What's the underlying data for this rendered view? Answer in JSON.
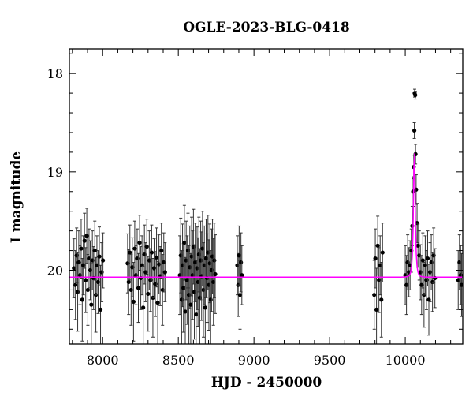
{
  "chart_data": {
    "type": "scatter",
    "title": "OGLE-2023-BLG-0418",
    "xlabel": "HJD - 2450000",
    "ylabel": "I magnitude",
    "xlim": [
      7780,
      10380
    ],
    "ylim": [
      20.75,
      17.75
    ],
    "y_inverted": true,
    "xticks": [
      8000,
      8500,
      9000,
      9500,
      10000
    ],
    "yticks": [
      18,
      19,
      20
    ],
    "grid": false,
    "colors": {
      "data": "#000000",
      "errorbar": "#333333",
      "model": "#ff00ff"
    },
    "model": {
      "name": "",
      "baseline_mag": 20.07,
      "peak_time": 10060,
      "peak_mag": 18.6,
      "tE": 11,
      "u0": 0.28
    },
    "series": [
      {
        "name": "",
        "points": [
          {
            "x": 7810,
            "y": 19.98
          },
          {
            "x": 7820,
            "y": 20.15
          },
          {
            "x": 7828,
            "y": 19.85
          },
          {
            "x": 7835,
            "y": 20.22
          },
          {
            "x": 7842,
            "y": 19.92
          },
          {
            "x": 7850,
            "y": 20.05
          },
          {
            "x": 7858,
            "y": 19.78
          },
          {
            "x": 7865,
            "y": 20.3
          },
          {
            "x": 7872,
            "y": 19.95
          },
          {
            "x": 7880,
            "y": 19.7
          },
          {
            "x": 7888,
            "y": 20.1
          },
          {
            "x": 7895,
            "y": 19.65
          },
          {
            "x": 7902,
            "y": 20.2
          },
          {
            "x": 7910,
            "y": 19.88
          },
          {
            "x": 7918,
            "y": 20.0
          },
          {
            "x": 7925,
            "y": 20.35
          },
          {
            "x": 7932,
            "y": 19.9
          },
          {
            "x": 7940,
            "y": 20.08
          },
          {
            "x": 7948,
            "y": 19.8
          },
          {
            "x": 7955,
            "y": 20.25
          },
          {
            "x": 7962,
            "y": 19.95
          },
          {
            "x": 7970,
            "y": 20.12
          },
          {
            "x": 7978,
            "y": 19.86
          },
          {
            "x": 7986,
            "y": 20.4
          },
          {
            "x": 7994,
            "y": 20.02
          },
          {
            "x": 8002,
            "y": 19.9
          },
          {
            "x": 8165,
            "y": 19.93
          },
          {
            "x": 8172,
            "y": 20.12
          },
          {
            "x": 8180,
            "y": 19.82
          },
          {
            "x": 8188,
            "y": 20.2
          },
          {
            "x": 8196,
            "y": 19.97
          },
          {
            "x": 8204,
            "y": 20.32
          },
          {
            "x": 8212,
            "y": 19.78
          },
          {
            "x": 8220,
            "y": 20.05
          },
          {
            "x": 8228,
            "y": 19.88
          },
          {
            "x": 8236,
            "y": 20.18
          },
          {
            "x": 8244,
            "y": 19.72
          },
          {
            "x": 8252,
            "y": 20.08
          },
          {
            "x": 8260,
            "y": 19.95
          },
          {
            "x": 8268,
            "y": 20.38
          },
          {
            "x": 8276,
            "y": 19.84
          },
          {
            "x": 8284,
            "y": 20.02
          },
          {
            "x": 8292,
            "y": 19.76
          },
          {
            "x": 8300,
            "y": 20.24
          },
          {
            "x": 8308,
            "y": 19.9
          },
          {
            "x": 8316,
            "y": 20.1
          },
          {
            "x": 8324,
            "y": 19.82
          },
          {
            "x": 8332,
            "y": 20.28
          },
          {
            "x": 8340,
            "y": 19.98
          },
          {
            "x": 8348,
            "y": 20.14
          },
          {
            "x": 8356,
            "y": 19.87
          },
          {
            "x": 8364,
            "y": 20.33
          },
          {
            "x": 8372,
            "y": 19.94
          },
          {
            "x": 8380,
            "y": 20.06
          },
          {
            "x": 8388,
            "y": 19.8
          },
          {
            "x": 8396,
            "y": 20.2
          },
          {
            "x": 8404,
            "y": 19.92
          },
          {
            "x": 8412,
            "y": 20.02
          },
          {
            "x": 8510,
            "y": 20.05
          },
          {
            "x": 8516,
            "y": 19.85
          },
          {
            "x": 8522,
            "y": 20.3
          },
          {
            "x": 8528,
            "y": 19.95
          },
          {
            "x": 8534,
            "y": 20.18
          },
          {
            "x": 8540,
            "y": 19.72
          },
          {
            "x": 8546,
            "y": 20.42
          },
          {
            "x": 8552,
            "y": 19.9
          },
          {
            "x": 8558,
            "y": 20.1
          },
          {
            "x": 8564,
            "y": 19.8
          },
          {
            "x": 8570,
            "y": 20.25
          },
          {
            "x": 8576,
            "y": 19.97
          },
          {
            "x": 8582,
            "y": 20.35
          },
          {
            "x": 8588,
            "y": 19.86
          },
          {
            "x": 8594,
            "y": 20.05
          },
          {
            "x": 8600,
            "y": 19.76
          },
          {
            "x": 8606,
            "y": 20.22
          },
          {
            "x": 8612,
            "y": 19.92
          },
          {
            "x": 8618,
            "y": 20.45
          },
          {
            "x": 8624,
            "y": 19.98
          },
          {
            "x": 8630,
            "y": 20.12
          },
          {
            "x": 8636,
            "y": 19.84
          },
          {
            "x": 8642,
            "y": 20.28
          },
          {
            "x": 8648,
            "y": 19.9
          },
          {
            "x": 8654,
            "y": 20.06
          },
          {
            "x": 8660,
            "y": 19.78
          },
          {
            "x": 8666,
            "y": 20.2
          },
          {
            "x": 8672,
            "y": 19.95
          },
          {
            "x": 8678,
            "y": 20.38
          },
          {
            "x": 8684,
            "y": 19.88
          },
          {
            "x": 8690,
            "y": 20.08
          },
          {
            "x": 8696,
            "y": 19.82
          },
          {
            "x": 8702,
            "y": 20.15
          },
          {
            "x": 8708,
            "y": 19.93
          },
          {
            "x": 8714,
            "y": 20.3
          },
          {
            "x": 8720,
            "y": 20.0
          },
          {
            "x": 8726,
            "y": 19.86
          },
          {
            "x": 8732,
            "y": 20.12
          },
          {
            "x": 8738,
            "y": 19.9
          },
          {
            "x": 8744,
            "y": 20.04
          },
          {
            "x": 8890,
            "y": 19.95
          },
          {
            "x": 8896,
            "y": 20.15
          },
          {
            "x": 8902,
            "y": 19.85
          },
          {
            "x": 8908,
            "y": 20.25
          },
          {
            "x": 8914,
            "y": 19.92
          },
          {
            "x": 8920,
            "y": 20.05
          },
          {
            "x": 9795,
            "y": 20.25
          },
          {
            "x": 9802,
            "y": 19.88
          },
          {
            "x": 9810,
            "y": 20.4
          },
          {
            "x": 9818,
            "y": 19.75
          },
          {
            "x": 9826,
            "y": 20.1
          },
          {
            "x": 9834,
            "y": 19.95
          },
          {
            "x": 9842,
            "y": 20.3
          },
          {
            "x": 9850,
            "y": 19.82
          },
          {
            "x": 10000,
            "y": 20.05
          },
          {
            "x": 10008,
            "y": 20.15
          },
          {
            "x": 10016,
            "y": 19.92
          },
          {
            "x": 10024,
            "y": 20.02
          },
          {
            "x": 10032,
            "y": 19.95
          },
          {
            "x": 10040,
            "y": 19.8
          },
          {
            "x": 10046,
            "y": 19.55
          },
          {
            "x": 10052,
            "y": 19.2
          },
          {
            "x": 10056,
            "y": 18.95
          },
          {
            "x": 10060,
            "y": 18.58
          },
          {
            "x": 10062,
            "y": 18.2
          },
          {
            "x": 10066,
            "y": 18.22
          },
          {
            "x": 10068,
            "y": 18.82
          },
          {
            "x": 10072,
            "y": 19.18
          },
          {
            "x": 10078,
            "y": 19.52
          },
          {
            "x": 10084,
            "y": 19.75
          },
          {
            "x": 10092,
            "y": 19.85
          },
          {
            "x": 10100,
            "y": 20.02
          },
          {
            "x": 10108,
            "y": 20.15
          },
          {
            "x": 10116,
            "y": 19.9
          },
          {
            "x": 10124,
            "y": 20.25
          },
          {
            "x": 10132,
            "y": 19.95
          },
          {
            "x": 10140,
            "y": 20.1
          },
          {
            "x": 10148,
            "y": 19.88
          },
          {
            "x": 10156,
            "y": 20.3
          },
          {
            "x": 10164,
            "y": 20.02
          },
          {
            "x": 10172,
            "y": 19.92
          },
          {
            "x": 10180,
            "y": 20.12
          },
          {
            "x": 10188,
            "y": 19.85
          },
          {
            "x": 10196,
            "y": 20.08
          },
          {
            "x": 10350,
            "y": 20.1
          },
          {
            "x": 10358,
            "y": 19.92
          },
          {
            "x": 10366,
            "y": 20.05
          },
          {
            "x": 10372,
            "y": 20.15
          }
        ],
        "errors": [
          0.3,
          0.35,
          0.28,
          0.4,
          0.32,
          0.3,
          0.3,
          0.42,
          0.3,
          0.28,
          0.33,
          0.28,
          0.36,
          0.3,
          0.3,
          0.42,
          0.3,
          0.32,
          0.3,
          0.38,
          0.3,
          0.32,
          0.3,
          0.45,
          0.3,
          0.28,
          0.3,
          0.33,
          0.28,
          0.36,
          0.3,
          0.4,
          0.28,
          0.3,
          0.3,
          0.35,
          0.28,
          0.32,
          0.3,
          0.42,
          0.3,
          0.3,
          0.28,
          0.38,
          0.3,
          0.32,
          0.28,
          0.4,
          0.3,
          0.33,
          0.3,
          0.42,
          0.3,
          0.3,
          0.28,
          0.36,
          0.3,
          0.3,
          0.4,
          0.38,
          0.5,
          0.42,
          0.45,
          0.38,
          0.55,
          0.4,
          0.45,
          0.38,
          0.5,
          0.42,
          0.52,
          0.4,
          0.45,
          0.38,
          0.48,
          0.4,
          0.55,
          0.42,
          0.45,
          0.38,
          0.5,
          0.4,
          0.45,
          0.38,
          0.48,
          0.4,
          0.52,
          0.4,
          0.45,
          0.38,
          0.46,
          0.4,
          0.5,
          0.42,
          0.38,
          0.44,
          0.38,
          0.4,
          0.3,
          0.32,
          0.3,
          0.35,
          0.3,
          0.3,
          0.35,
          0.3,
          0.42,
          0.3,
          0.33,
          0.3,
          0.38,
          0.3,
          0.3,
          0.3,
          0.28,
          0.25,
          0.25,
          0.22,
          0.2,
          0.15,
          0.12,
          0.08,
          0.04,
          0.04,
          0.1,
          0.15,
          0.2,
          0.22,
          0.25,
          0.28,
          0.3,
          0.28,
          0.33,
          0.3,
          0.3,
          0.28,
          0.36,
          0.3,
          0.28,
          0.3,
          0.28,
          0.3,
          0.3,
          0.28,
          0.3,
          0.32
        ]
      }
    ]
  }
}
